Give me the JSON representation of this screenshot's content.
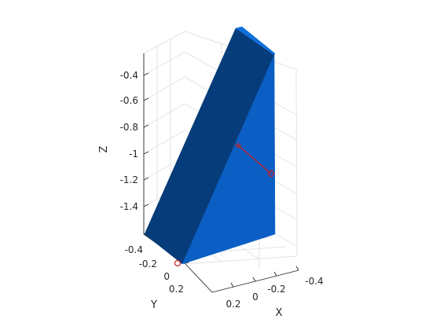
{
  "chart_data": {
    "type": "3d-surface",
    "title": "",
    "xlabel": "X",
    "ylabel": "Y",
    "zlabel": "Z",
    "xlim": [
      -0.5,
      0.3
    ],
    "ylim": [
      -0.5,
      0.3
    ],
    "zlim": [
      -1.6,
      -0.3
    ],
    "x_ticks": [
      0.2,
      0,
      -0.2,
      -0.4
    ],
    "x_tick_labels": [
      "0.2",
      "0",
      "-0.2",
      "-0.4"
    ],
    "y_ticks": [
      -0.4,
      -0.2,
      0,
      0.2
    ],
    "y_tick_labels": [
      "-0.4",
      "-0.2",
      "0",
      "0.2"
    ],
    "z_ticks": [
      -0.4,
      -0.6,
      -0.8,
      -1,
      -1.2,
      -1.4
    ],
    "z_tick_labels": [
      "-0.4",
      "-0.6",
      "-0.8",
      "-1",
      "-1.2",
      "-1.4"
    ],
    "solid": {
      "name": "wedge",
      "faces": [
        {
          "name": "left-face",
          "color": "#073c7a"
        },
        {
          "name": "front-face",
          "color": "#0a5ec4"
        },
        {
          "name": "top-face",
          "color": "#0f6fd9"
        }
      ]
    },
    "line_segment": {
      "color": "#cc1f1f",
      "start_marker": "plus",
      "end_marker": "circle"
    },
    "extra_marker": {
      "color": "#cc1f1f",
      "marker": "circle"
    }
  }
}
